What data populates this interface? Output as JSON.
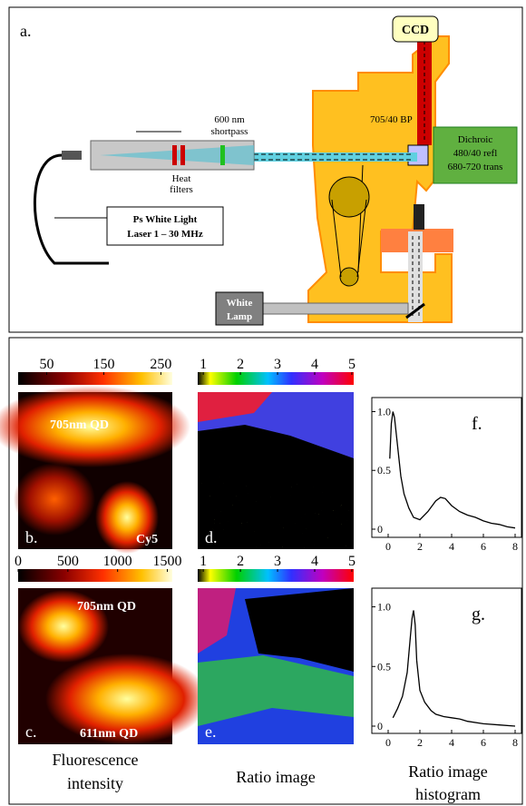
{
  "panel_a": {
    "label": "a.",
    "ccd": "CCD",
    "bandpass": "705/40 BP",
    "shortpass": [
      "600 nm",
      "shortpass"
    ],
    "heat_filters": [
      "Heat",
      "filters"
    ],
    "dichroic": [
      "Dichroic",
      "480/40 refl",
      "680-720 trans"
    ],
    "laser": [
      "Ps White Light",
      "Laser 1 – 30 MHz"
    ],
    "lamp": [
      "White",
      "Lamp"
    ]
  },
  "images": {
    "b": {
      "label": "b.",
      "top": "705nm QD",
      "bottom": "Cy5"
    },
    "c": {
      "label": "c.",
      "top": "705nm QD",
      "bottom": "611nm QD"
    },
    "d": {
      "label": "d."
    },
    "e": {
      "label": "e."
    }
  },
  "colorbars": [
    {
      "lim": [
        0,
        270
      ],
      "ticks": [
        50,
        150,
        250
      ]
    },
    {
      "lim": [
        0,
        1550
      ],
      "ticks": [
        0,
        500,
        1000,
        1500
      ]
    },
    {
      "lim": [
        0.85,
        5.05
      ],
      "ticks": [
        1,
        2,
        3,
        4,
        5
      ]
    },
    {
      "lim": [
        0.85,
        5.05
      ],
      "ticks": [
        1,
        2,
        3,
        4,
        5
      ]
    }
  ],
  "captions": {
    "intensity": [
      "Fluorescence",
      "intensity"
    ],
    "ratio": "Ratio image",
    "histogram": [
      "Ratio image",
      "histogram"
    ]
  },
  "chart_data": [
    {
      "type": "line",
      "label": "f.",
      "color": "#000",
      "xlim": [
        0,
        8
      ],
      "ylim": [
        0,
        1.05
      ],
      "xticks": [
        0,
        2,
        4,
        6,
        8
      ],
      "yticks": [
        0,
        0.5,
        {
          "value": 1,
          "label": "1.0"
        }
      ],
      "x": [
        0.1,
        0.2,
        0.3,
        0.4,
        0.6,
        0.8,
        1.0,
        1.3,
        1.6,
        2.0,
        2.5,
        3.0,
        3.3,
        3.6,
        4.0,
        4.5,
        5.0,
        5.5,
        6.0,
        6.5,
        7.0,
        7.5,
        8.0
      ],
      "y": [
        0.6,
        0.9,
        1.0,
        0.95,
        0.7,
        0.45,
        0.3,
        0.18,
        0.1,
        0.08,
        0.15,
        0.24,
        0.27,
        0.26,
        0.2,
        0.15,
        0.12,
        0.1,
        0.07,
        0.05,
        0.04,
        0.02,
        0.01
      ]
    },
    {
      "type": "line",
      "label": "g.",
      "color": "#000",
      "xlim": [
        0,
        8
      ],
      "ylim": [
        0,
        1.05
      ],
      "xticks": [
        0,
        2,
        4,
        6,
        8
      ],
      "yticks": [
        0,
        0.5,
        {
          "value": 1,
          "label": "1.0"
        }
      ],
      "x": [
        0.3,
        0.6,
        0.9,
        1.2,
        1.4,
        1.5,
        1.6,
        1.7,
        1.8,
        2.0,
        2.3,
        2.7,
        3.0,
        3.5,
        4.0,
        4.5,
        5.0,
        6.0,
        7.0,
        8.0
      ],
      "y": [
        0.07,
        0.15,
        0.25,
        0.45,
        0.75,
        0.9,
        0.97,
        0.85,
        0.55,
        0.3,
        0.2,
        0.13,
        0.1,
        0.08,
        0.07,
        0.06,
        0.04,
        0.02,
        0.01,
        0
      ]
    }
  ]
}
